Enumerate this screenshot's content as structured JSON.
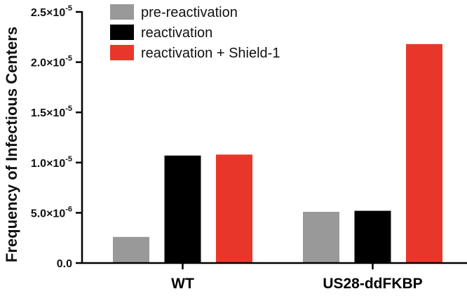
{
  "chart_data": {
    "type": "bar",
    "title": "",
    "xlabel": "",
    "ylabel": "Frequency of Infectious Centers",
    "ylim": [
      0,
      2.5e-05
    ],
    "yticks": [
      {
        "mantissa": "0.0",
        "exponent": ""
      },
      {
        "mantissa": "5.0×10",
        "exponent": "-6"
      },
      {
        "mantissa": "1.0×10",
        "exponent": "-5"
      },
      {
        "mantissa": "1.5×10",
        "exponent": "-5"
      },
      {
        "mantissa": "2.0×10",
        "exponent": "-5"
      },
      {
        "mantissa": "2.5×10",
        "exponent": "-5"
      }
    ],
    "ytick_values": [
      0,
      5e-06,
      1e-05,
      1.5e-05,
      2e-05,
      2.5e-05
    ],
    "categories": [
      "WT",
      "US28-ddFKBP"
    ],
    "series": [
      {
        "name": "pre-reactivation",
        "color": "#999999",
        "values": [
          2.6e-06,
          5.1e-06
        ]
      },
      {
        "name": "reactivation",
        "color": "#000000",
        "values": [
          1.07e-05,
          5.2e-06
        ]
      },
      {
        "name": "reactivation + Shield-1",
        "color": "#e8372a",
        "values": [
          1.08e-05,
          2.18e-05
        ]
      }
    ],
    "legend": "top-left",
    "grid": false
  }
}
